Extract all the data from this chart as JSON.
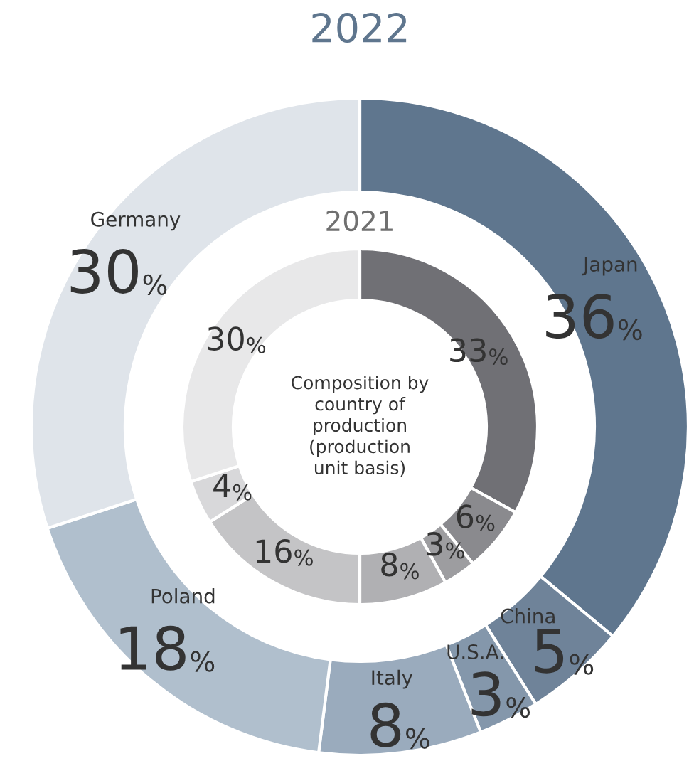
{
  "chart_data": {
    "type": "donut",
    "annotations": [
      "Composition by country of production (production unit basis)"
    ],
    "data_labels": true,
    "categories": [
      "Japan",
      "China",
      "U.S.A.",
      "Italy",
      "Poland",
      null,
      "Germany"
    ],
    "series": [
      {
        "name": "2022",
        "color": "#5f768e",
        "values": [
          36,
          5,
          3,
          8,
          18,
          null,
          30
        ],
        "value_labels": [
          "36%",
          "5%",
          "3%",
          "8%",
          "18%",
          null,
          "30%"
        ],
        "colors": [
          "#5f768e",
          "#6f8399",
          "#8497ab",
          "#9aabbd",
          "#b0bfcd",
          null,
          "#dfe4ea"
        ]
      },
      {
        "name": "2021",
        "color": "#707070",
        "values": [
          33,
          6,
          3,
          8,
          16,
          4,
          30
        ],
        "value_labels": [
          "33%",
          "6%",
          "3%",
          "8%",
          "16%",
          "4%",
          "30%"
        ],
        "colors": [
          "#707075",
          "#8a8a8e",
          "#9d9da0",
          "#b0b0b3",
          "#c4c4c6",
          "#d8d8da",
          "#e8e8e9"
        ]
      }
    ]
  }
}
